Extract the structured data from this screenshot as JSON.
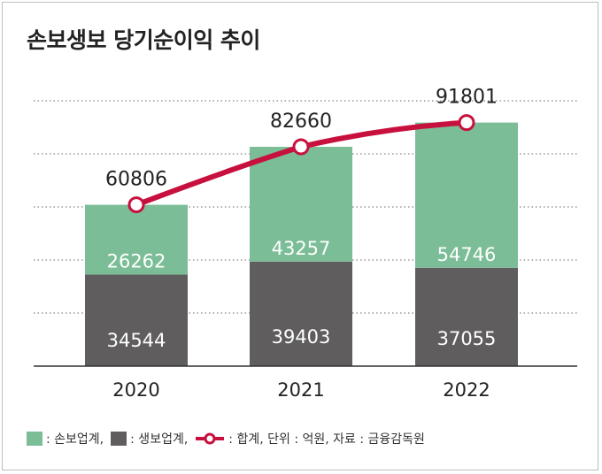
{
  "title": "손보생보 당기순이익 추이",
  "colors": {
    "nonlife": "#7bbd97",
    "life": "#5f5d5e",
    "total_line": "#c8103e",
    "grid": "#666666",
    "text_dark": "#222222",
    "text_on_bar": "#ffffff"
  },
  "legend": {
    "nonlife": ": 손보업계,",
    "life": ": 생보업계,",
    "total": ": 합계, 단위 : 억원, 자료 : 금융감독원"
  },
  "chart_data": {
    "type": "bar",
    "stacked": true,
    "categories": [
      "2020",
      "2021",
      "2022"
    ],
    "series": [
      {
        "name": "생보업계",
        "values": [
          34544,
          39403,
          37055
        ]
      },
      {
        "name": "손보업계",
        "values": [
          26262,
          43257,
          54746
        ]
      }
    ],
    "line": {
      "name": "합계",
      "values": [
        60806,
        82660,
        91801
      ]
    },
    "ylim": [
      0,
      100000
    ],
    "grid": true,
    "unit": "억원",
    "source": "금융감독원",
    "legend_position": "bottom-left"
  }
}
